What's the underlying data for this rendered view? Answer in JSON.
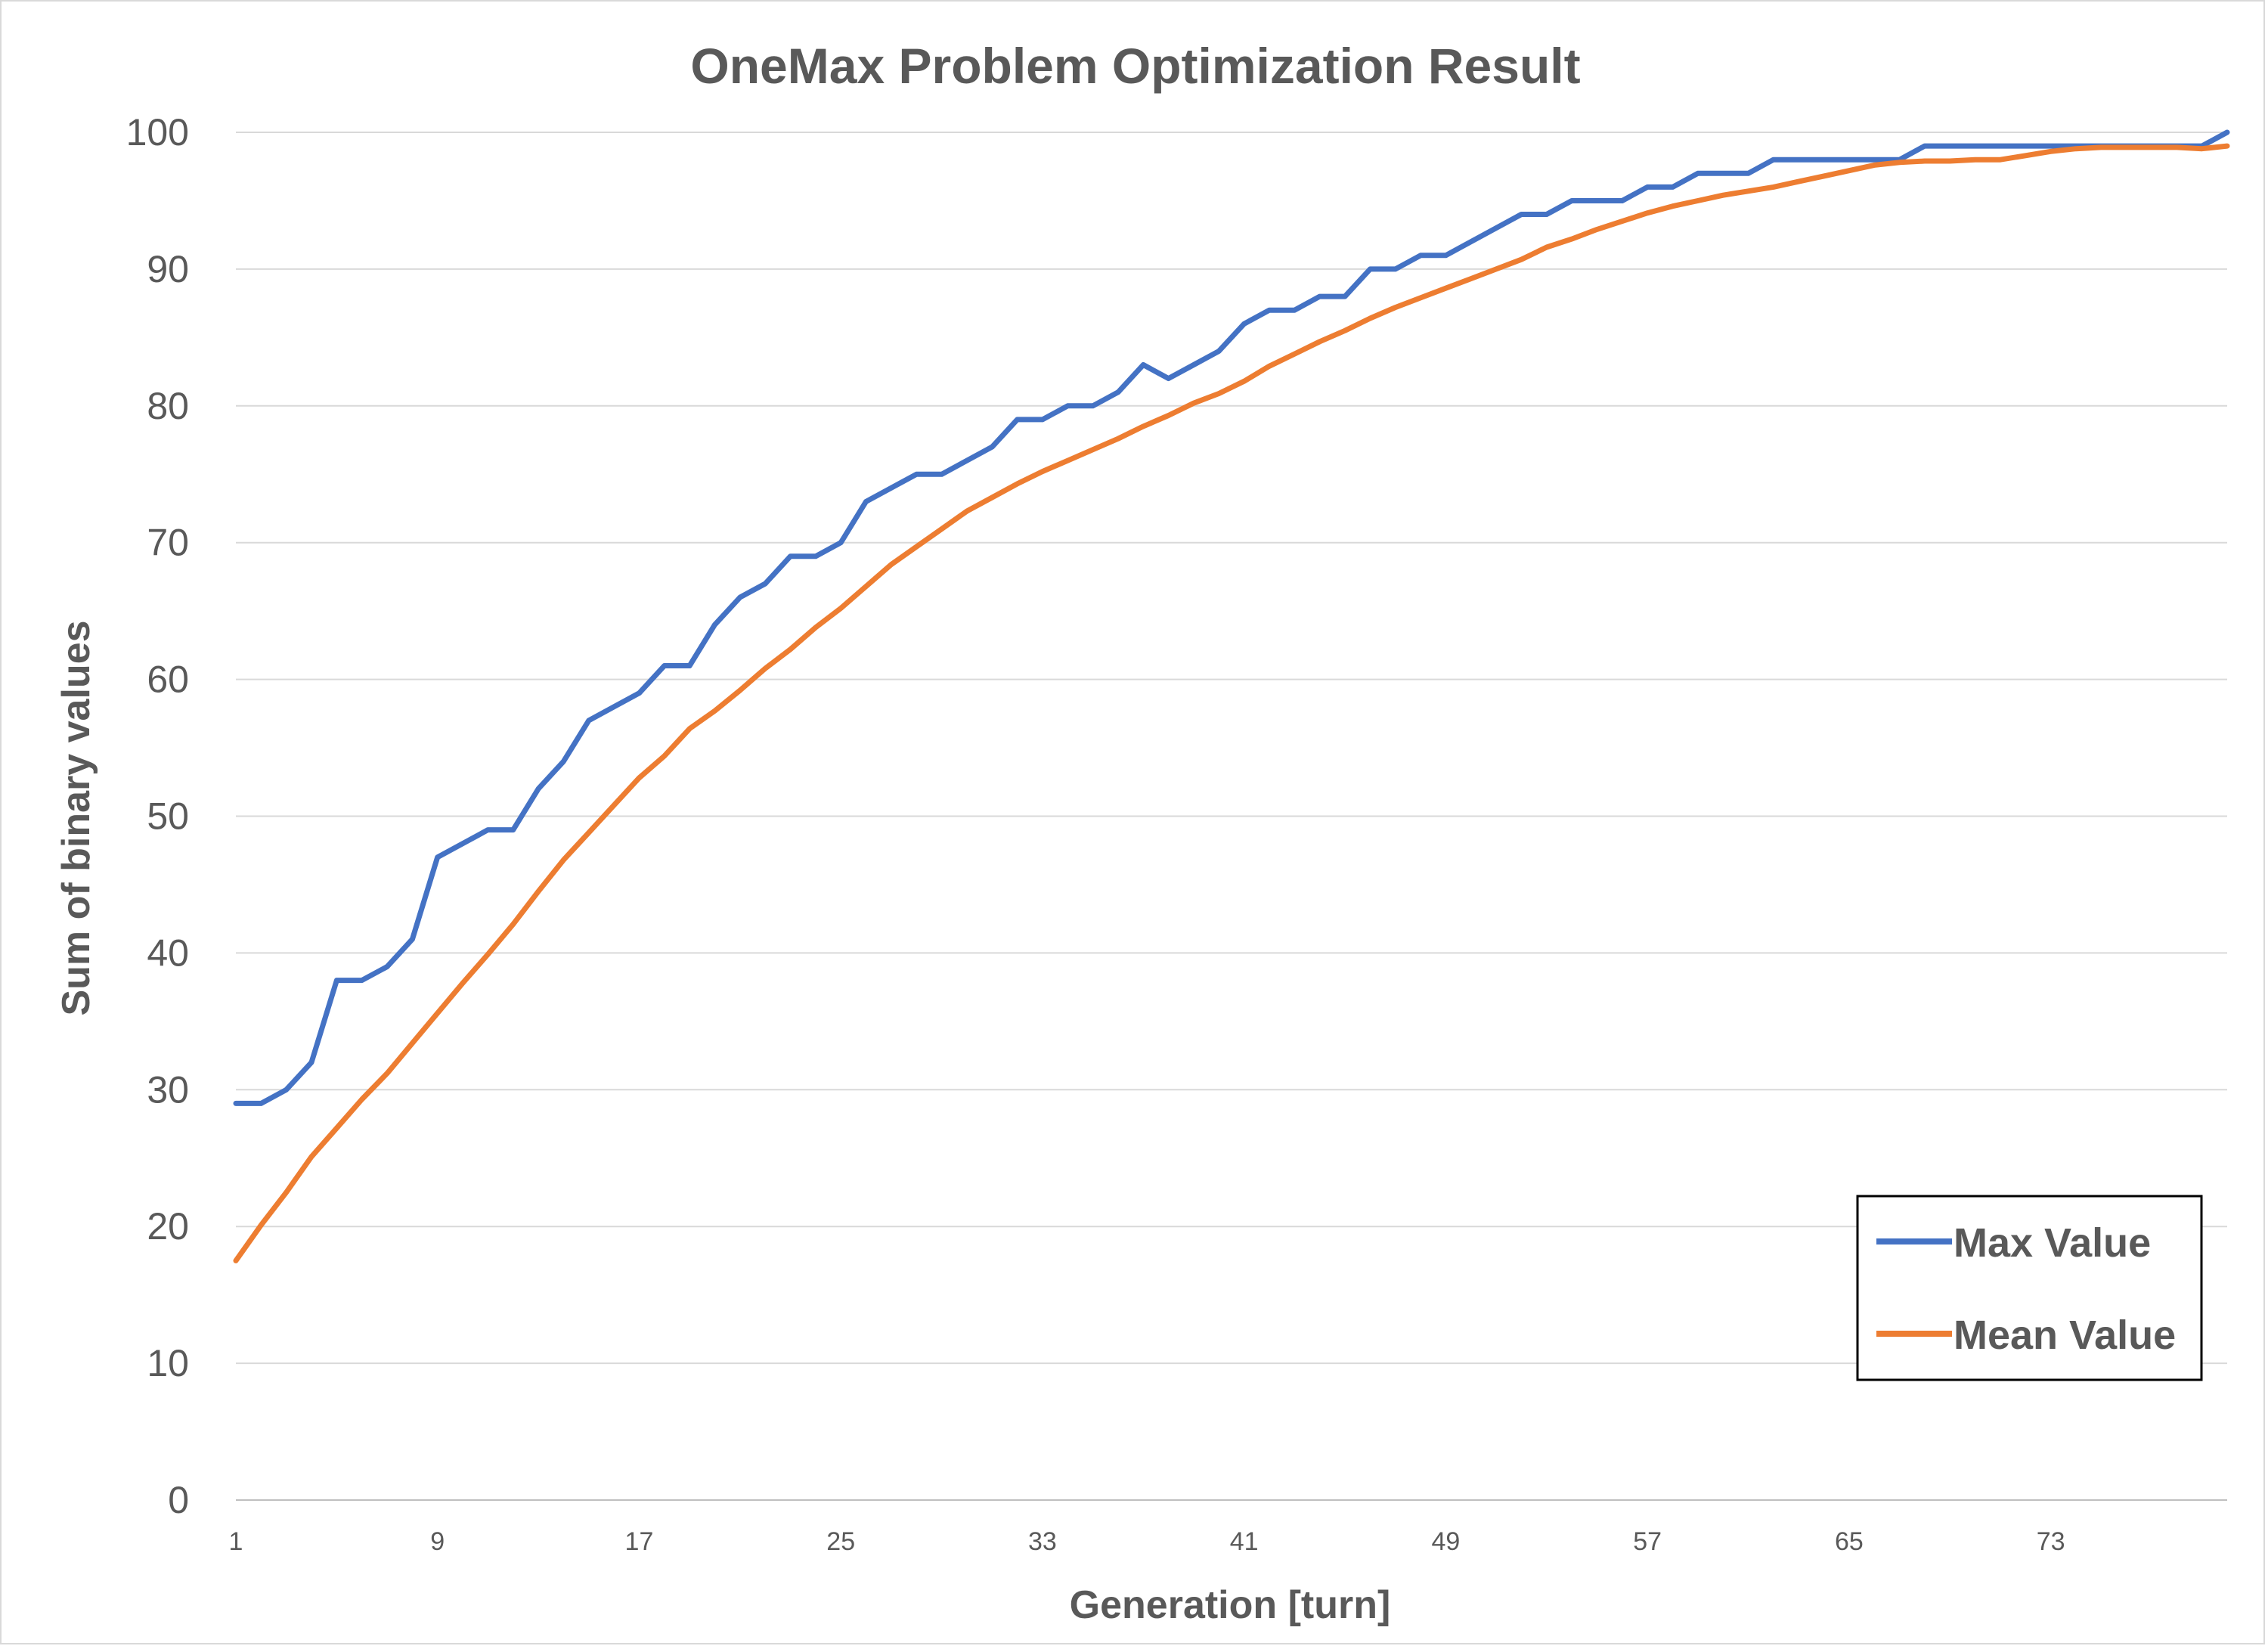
{
  "chart_data": {
    "type": "line",
    "title": "OneMax Problem Optimization Result",
    "xlabel": "Generation [turn]",
    "ylabel": "Sum of binary values",
    "ylim": [
      0,
      100
    ],
    "yticks": [
      "0",
      "10",
      "20",
      "30",
      "40",
      "50",
      "60",
      "70",
      "80",
      "90",
      "100"
    ],
    "xticks": [
      "1",
      "9",
      "17",
      "25",
      "33",
      "41",
      "49",
      "57",
      "65",
      "73"
    ],
    "grid": true,
    "legend_position": "bottom-right",
    "x": [
      1,
      2,
      3,
      4,
      5,
      6,
      7,
      8,
      9,
      10,
      11,
      12,
      13,
      14,
      15,
      16,
      17,
      18,
      19,
      20,
      21,
      22,
      23,
      24,
      25,
      26,
      27,
      28,
      29,
      30,
      31,
      32,
      33,
      34,
      35,
      36,
      37,
      38,
      39,
      40,
      41,
      42,
      43,
      44,
      45,
      46,
      47,
      48,
      49,
      50,
      51,
      52,
      53,
      54,
      55,
      56,
      57,
      58,
      59,
      60,
      61,
      62,
      63,
      64,
      65,
      66,
      67,
      68,
      69,
      70,
      71,
      72,
      73,
      74,
      75,
      76,
      77,
      78,
      79,
      80
    ],
    "series": [
      {
        "name": "Max Value",
        "color": "#4472c4",
        "values": [
          29,
          29,
          30,
          32,
          38,
          38,
          39,
          41,
          47,
          48,
          49,
          49,
          52,
          54,
          57,
          58,
          59,
          61,
          61,
          64,
          66,
          67,
          69,
          69,
          70,
          73,
          74,
          75,
          75,
          76,
          77,
          79,
          79,
          80,
          80,
          81,
          83,
          82,
          83,
          84,
          86,
          87,
          87,
          88,
          88,
          90,
          90,
          91,
          91,
          92,
          93,
          94,
          94,
          95,
          95,
          95,
          96,
          96,
          97,
          97,
          97,
          98,
          98,
          98,
          98,
          98,
          98,
          99,
          99,
          99,
          99,
          99,
          99,
          99,
          99,
          99,
          99,
          99,
          99,
          100
        ]
      },
      {
        "name": "Mean Value",
        "color": "#ed7d31",
        "values": [
          17.5,
          20.1,
          22.5,
          25.1,
          27.2,
          29.3,
          31.2,
          33.4,
          35.6,
          37.8,
          39.9,
          42.1,
          44.5,
          46.8,
          48.8,
          50.8,
          52.8,
          54.4,
          56.4,
          57.7,
          59.2,
          60.8,
          62.2,
          63.8,
          65.2,
          66.8,
          68.4,
          69.7,
          71.0,
          72.3,
          73.3,
          74.3,
          75.2,
          76.0,
          76.8,
          77.6,
          78.5,
          79.3,
          80.2,
          80.9,
          81.8,
          82.9,
          83.8,
          84.7,
          85.5,
          86.4,
          87.2,
          87.9,
          88.6,
          89.3,
          90.0,
          90.7,
          91.6,
          92.2,
          92.9,
          93.5,
          94.1,
          94.6,
          95.0,
          95.4,
          95.7,
          96.0,
          96.4,
          96.8,
          97.2,
          97.6,
          97.8,
          97.9,
          97.9,
          98.0,
          98.0,
          98.3,
          98.6,
          98.8,
          98.9,
          98.9,
          98.9,
          98.9,
          98.8,
          99.0
        ]
      }
    ]
  }
}
